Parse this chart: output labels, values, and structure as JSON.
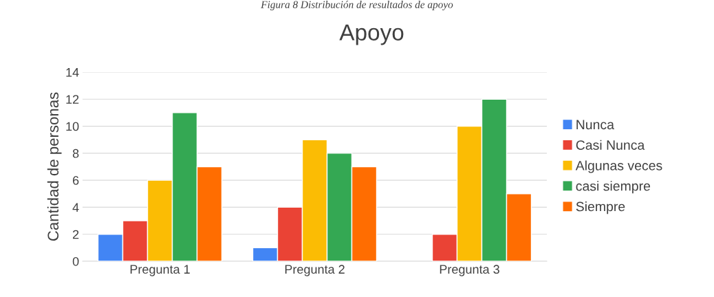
{
  "chart_data": {
    "type": "bar",
    "title": "Apoyo",
    "ylabel": "Cantidad de personas",
    "annotations": [
      "Figura 8 Distribución de resultados de apoyo"
    ],
    "categories": [
      "Pregunta 1",
      "Pregunta 2",
      "Pregunta 3"
    ],
    "series": [
      {
        "name": "Nunca",
        "color": "#4285f4",
        "values": [
          2,
          1,
          null
        ]
      },
      {
        "name": "Casi Nunca",
        "color": "#ea4335",
        "values": [
          3,
          4,
          2
        ]
      },
      {
        "name": "Algunas veces",
        "color": "#fbbc04",
        "values": [
          6,
          9,
          10
        ]
      },
      {
        "name": "casi siempre",
        "color": "#34a853",
        "values": [
          11,
          8,
          12
        ]
      },
      {
        "name": "Siempre",
        "color": "#ff6d01",
        "values": [
          7,
          7,
          5
        ]
      }
    ],
    "ylim": [
      0,
      14
    ],
    "yticks": [
      0,
      2,
      4,
      6,
      8,
      10,
      12,
      14
    ],
    "grid": "y",
    "legend": "right"
  }
}
